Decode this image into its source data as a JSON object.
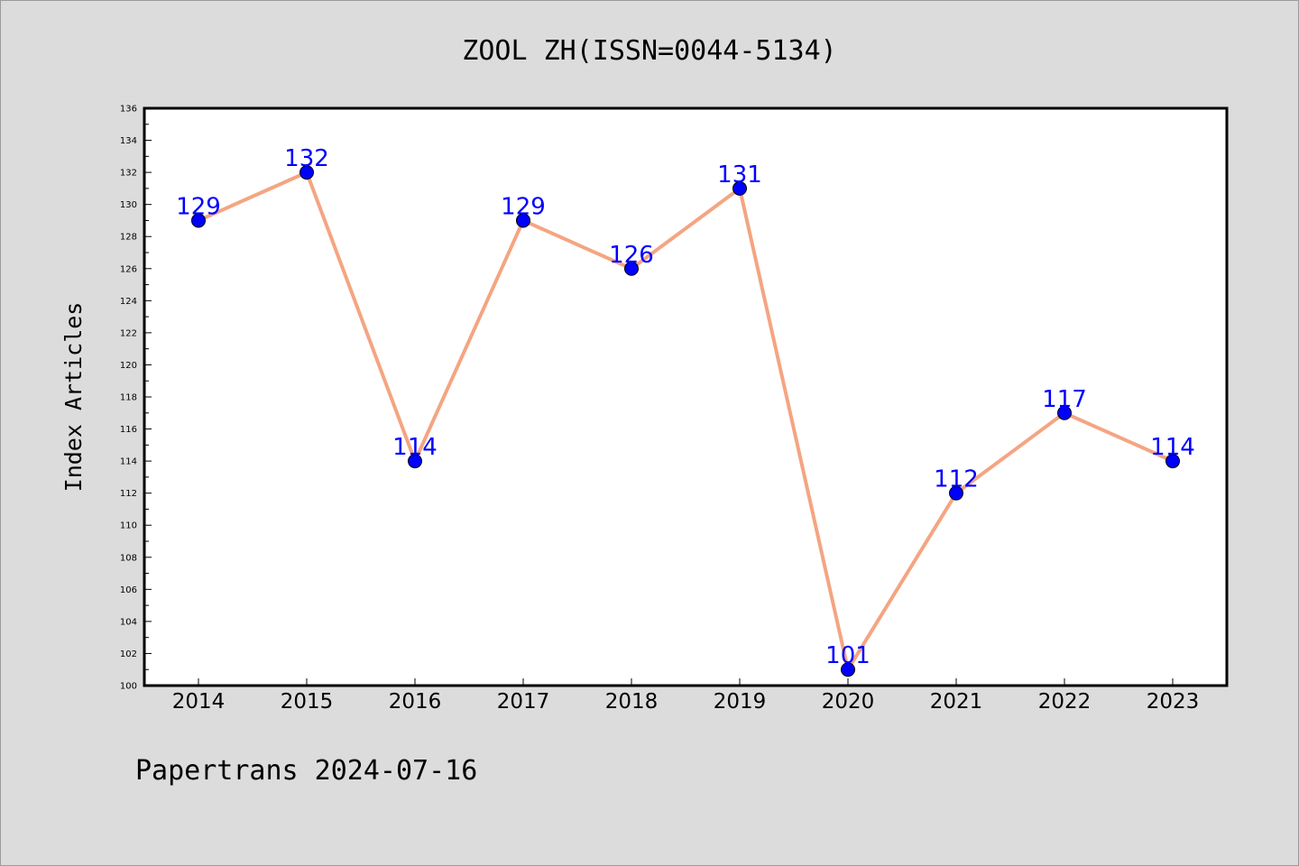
{
  "chart_data": {
    "type": "line",
    "title": "ZOOL ZH(ISSN=0044-5134)",
    "xlabel": "",
    "ylabel": "Index Articles",
    "categories": [
      "2014",
      "2015",
      "2016",
      "2017",
      "2018",
      "2019",
      "2020",
      "2021",
      "2022",
      "2023"
    ],
    "series": [
      {
        "values": [
          129,
          132,
          114,
          129,
          126,
          131,
          101,
          112,
          117,
          114
        ],
        "data_labels": [
          "129",
          "132",
          "114",
          "129",
          "126",
          "131",
          "101",
          "112",
          "117",
          "114"
        ]
      }
    ],
    "ylim": [
      100,
      136
    ],
    "yticks": [
      "100",
      "102",
      "104",
      "106",
      "108",
      "110",
      "112",
      "114",
      "116",
      "118",
      "120",
      "122",
      "124",
      "126",
      "128",
      "130",
      "132",
      "134",
      "136"
    ],
    "grid": false,
    "line_color": "#f4a582",
    "marker_color": "#0000ff",
    "label_color": "#0000ff"
  },
  "footer": "Papertrans 2024-07-16"
}
